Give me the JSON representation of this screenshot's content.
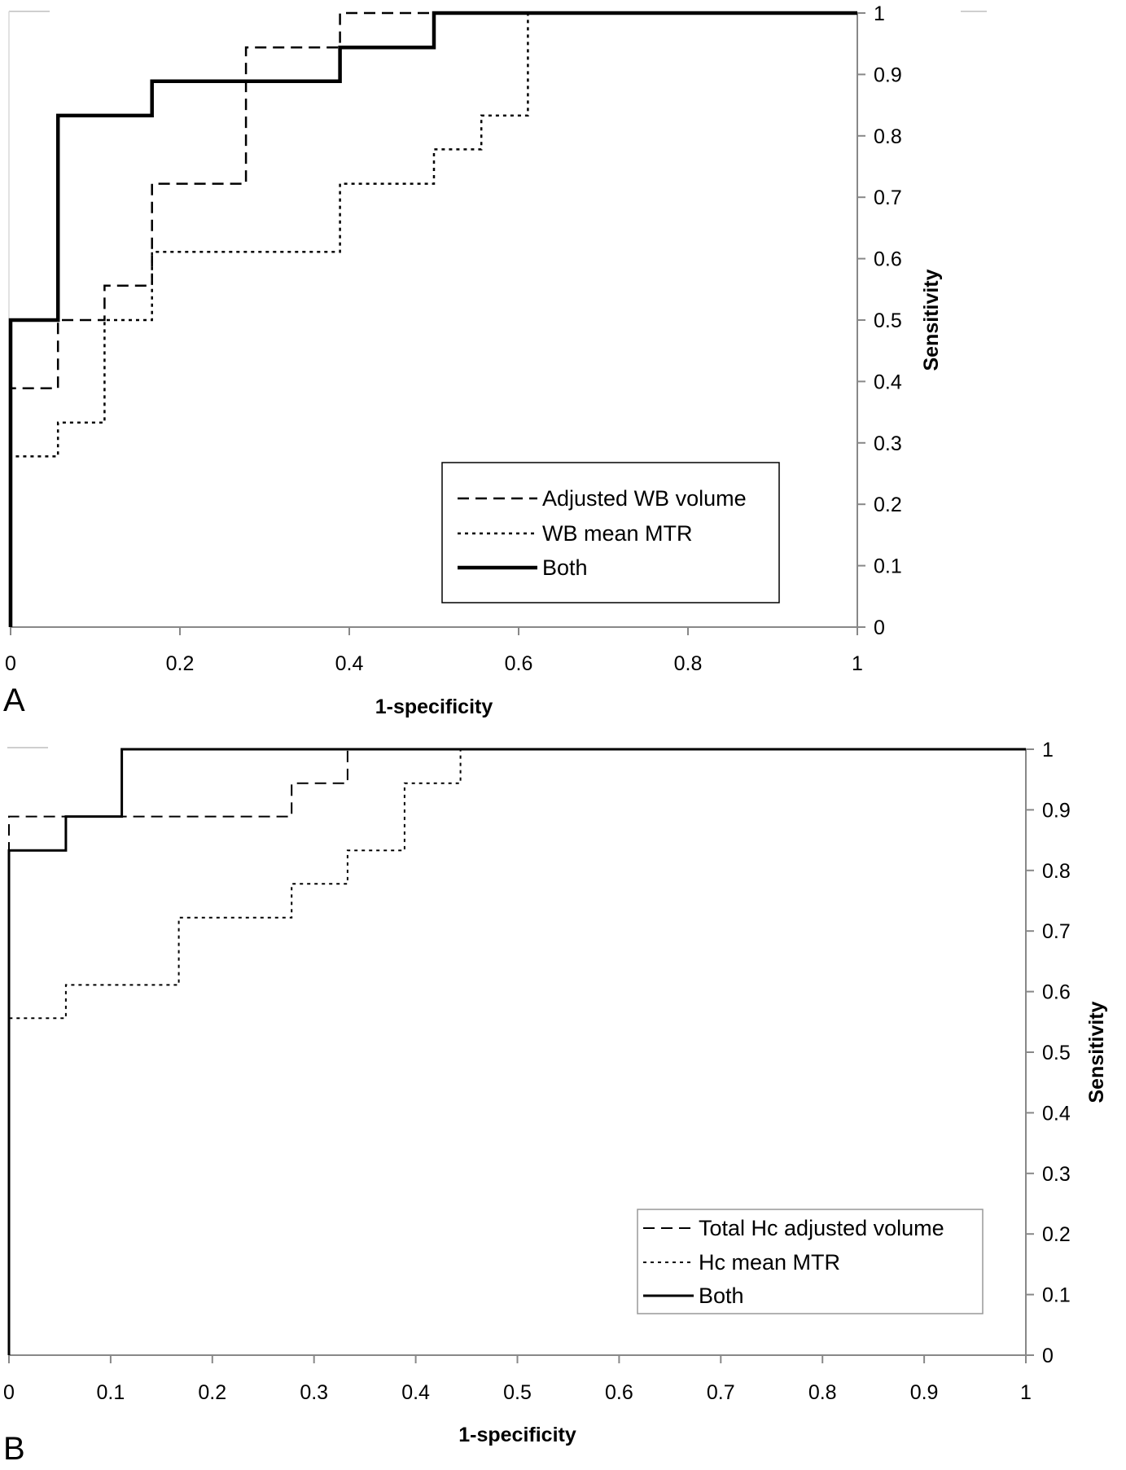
{
  "chart_data": [
    {
      "type": "line",
      "panel_label": "A",
      "xlabel": "1-specificity",
      "ylabel": "Sensitivity",
      "xlim": [
        0,
        1
      ],
      "ylim": [
        0,
        1
      ],
      "x_ticks": [
        "0",
        "0.2",
        "0.4",
        "0.6",
        "0.8",
        "1"
      ],
      "y_ticks": [
        "0",
        "0.1",
        "0.2",
        "0.3",
        "0.4",
        "0.5",
        "0.6",
        "0.7",
        "0.8",
        "0.9",
        "1"
      ],
      "y_axis_position": "right",
      "grid": false,
      "legend_position": "bottom-right",
      "series": [
        {
          "name": "Adjusted WB volume",
          "style": "dashed",
          "points": [
            [
              0,
              0
            ],
            [
              0,
              0.389
            ],
            [
              0.056,
              0.389
            ],
            [
              0.056,
              0.5
            ],
            [
              0.111,
              0.5
            ],
            [
              0.111,
              0.556
            ],
            [
              0.167,
              0.556
            ],
            [
              0.167,
              0.722
            ],
            [
              0.278,
              0.722
            ],
            [
              0.278,
              0.944
            ],
            [
              0.389,
              0.944
            ],
            [
              0.389,
              1
            ],
            [
              1,
              1
            ]
          ]
        },
        {
          "name": "WB mean MTR",
          "style": "dotted",
          "points": [
            [
              0,
              0
            ],
            [
              0,
              0.278
            ],
            [
              0.056,
              0.278
            ],
            [
              0.056,
              0.333
            ],
            [
              0.111,
              0.333
            ],
            [
              0.111,
              0.5
            ],
            [
              0.167,
              0.5
            ],
            [
              0.167,
              0.611
            ],
            [
              0.389,
              0.611
            ],
            [
              0.389,
              0.722
            ],
            [
              0.5,
              0.722
            ],
            [
              0.5,
              0.778
            ],
            [
              0.556,
              0.778
            ],
            [
              0.556,
              0.833
            ],
            [
              0.611,
              0.833
            ],
            [
              0.611,
              1
            ],
            [
              1,
              1
            ]
          ]
        },
        {
          "name": "Both",
          "style": "solid-bold",
          "points": [
            [
              0,
              0
            ],
            [
              0,
              0.5
            ],
            [
              0.056,
              0.5
            ],
            [
              0.056,
              0.833
            ],
            [
              0.167,
              0.833
            ],
            [
              0.167,
              0.889
            ],
            [
              0.389,
              0.889
            ],
            [
              0.389,
              0.944
            ],
            [
              0.5,
              0.944
            ],
            [
              0.5,
              1
            ],
            [
              1,
              1
            ]
          ]
        }
      ]
    },
    {
      "type": "line",
      "panel_label": "B",
      "xlabel": "1-specificity",
      "ylabel": "Sensitivity",
      "xlim": [
        0,
        1
      ],
      "ylim": [
        0,
        1
      ],
      "x_ticks": [
        "0",
        "0.1",
        "0.2",
        "0.3",
        "0.4",
        "0.5",
        "0.6",
        "0.7",
        "0.8",
        "0.9",
        "1"
      ],
      "y_ticks": [
        "0",
        "0.1",
        "0.2",
        "0.3",
        "0.4",
        "0.5",
        "0.6",
        "0.7",
        "0.8",
        "0.9",
        "1"
      ],
      "y_axis_position": "right",
      "grid": false,
      "legend_position": "bottom-right",
      "series": [
        {
          "name": "Total Hc adjusted volume",
          "style": "dashed",
          "points": [
            [
              0,
              0
            ],
            [
              0,
              0.889
            ],
            [
              0.278,
              0.889
            ],
            [
              0.278,
              0.944
            ],
            [
              0.333,
              0.944
            ],
            [
              0.333,
              1
            ],
            [
              1,
              1
            ]
          ]
        },
        {
          "name": "Hc mean MTR",
          "style": "dotted",
          "points": [
            [
              0,
              0
            ],
            [
              0,
              0.556
            ],
            [
              0.056,
              0.556
            ],
            [
              0.056,
              0.611
            ],
            [
              0.167,
              0.611
            ],
            [
              0.167,
              0.722
            ],
            [
              0.278,
              0.722
            ],
            [
              0.278,
              0.778
            ],
            [
              0.333,
              0.778
            ],
            [
              0.333,
              0.833
            ],
            [
              0.389,
              0.833
            ],
            [
              0.389,
              0.944
            ],
            [
              0.444,
              0.944
            ],
            [
              0.444,
              1
            ],
            [
              1,
              1
            ]
          ]
        },
        {
          "name": "Both",
          "style": "solid",
          "points": [
            [
              0,
              0
            ],
            [
              0,
              0.833
            ],
            [
              0.056,
              0.833
            ],
            [
              0.056,
              0.889
            ],
            [
              0.111,
              0.889
            ],
            [
              0.111,
              1
            ],
            [
              1,
              1
            ]
          ]
        }
      ]
    }
  ]
}
